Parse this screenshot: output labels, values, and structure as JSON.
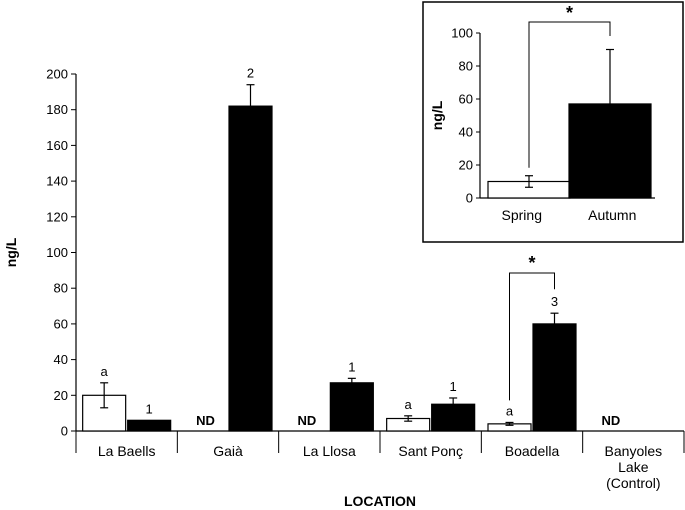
{
  "chart_data": [
    {
      "type": "bar",
      "xlabel": "LOCATION",
      "ylabel": "ng/L",
      "ylim": [
        0,
        200
      ],
      "yticks": [
        0,
        20,
        40,
        60,
        80,
        100,
        120,
        140,
        160,
        180,
        200
      ],
      "categories": [
        "La Baells",
        "Gaià",
        "La Llosa",
        "Sant Ponç",
        "Boadella",
        "Banyoles Lake (Control)"
      ],
      "category_lines": [
        [
          "La Baells"
        ],
        [
          "Gaià"
        ],
        [
          "La Llosa"
        ],
        [
          "Sant Ponç"
        ],
        [
          "Boadella"
        ],
        [
          "Banyoles",
          "Lake",
          "(Control)"
        ]
      ],
      "series": [
        {
          "color": "#ffffff",
          "values": [
            20,
            null,
            null,
            7,
            4,
            null
          ],
          "errors": [
            7,
            null,
            null,
            1.5,
            0.8,
            null
          ],
          "labels": [
            "a",
            "",
            "",
            "a",
            "a",
            ""
          ]
        },
        {
          "color": "#000000",
          "values": [
            6,
            182,
            27,
            15,
            60,
            null
          ],
          "errors": [
            0,
            12,
            2.5,
            3.5,
            6,
            null
          ],
          "labels": [
            "1",
            "2",
            "1",
            "1",
            "3",
            ""
          ]
        }
      ],
      "nd_markers": [
        {
          "category_index": 1,
          "text": "ND"
        },
        {
          "category_index": 2,
          "text": "ND"
        },
        {
          "category_index": 5,
          "text": "ND"
        }
      ],
      "significance": {
        "category_index": 4,
        "text": "*"
      },
      "grid": false
    },
    {
      "type": "bar",
      "ylabel": "ng/L",
      "ylim": [
        0,
        100
      ],
      "yticks": [
        0,
        20,
        40,
        60,
        80,
        100
      ],
      "categories": [
        "Spring",
        "Autumn"
      ],
      "values": [
        10,
        57
      ],
      "errors": [
        3.5,
        33
      ],
      "colors": [
        "#ffffff",
        "#000000"
      ],
      "significance": {
        "text": "*"
      },
      "legend_position": "inset top-right",
      "grid": false
    }
  ]
}
